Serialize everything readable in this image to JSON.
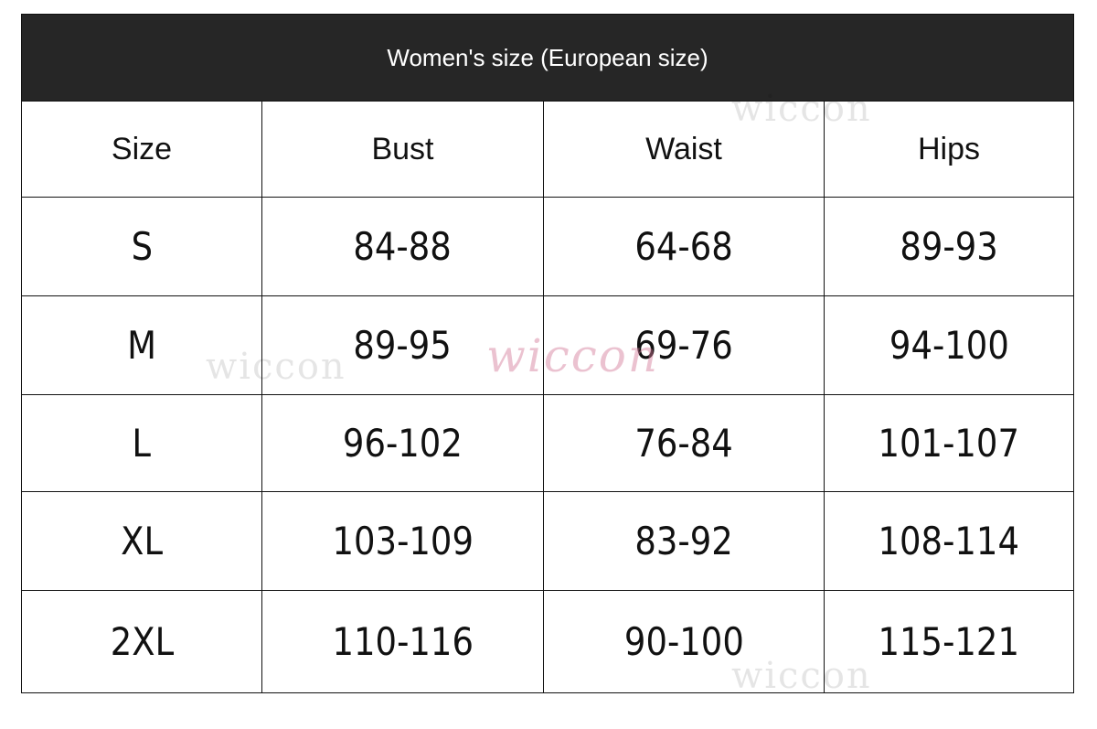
{
  "title": "Women's size (European size)",
  "columns": [
    "Size",
    "Bust",
    "Waist",
    "Hips"
  ],
  "rows": [
    [
      "S",
      "84-88",
      "64-68",
      "89-93"
    ],
    [
      "M",
      "89-95",
      "69-76",
      "94-100"
    ],
    [
      "L",
      "96-102",
      "76-84",
      "101-107"
    ],
    [
      "XL",
      "103-109",
      "83-92",
      "108-114"
    ],
    [
      "2XL",
      "110-116",
      "90-100",
      "115-121"
    ]
  ],
  "watermark": "wiccon",
  "colors": {
    "header_bg": "#262626",
    "header_text": "#ffffff",
    "border": "#111111"
  }
}
